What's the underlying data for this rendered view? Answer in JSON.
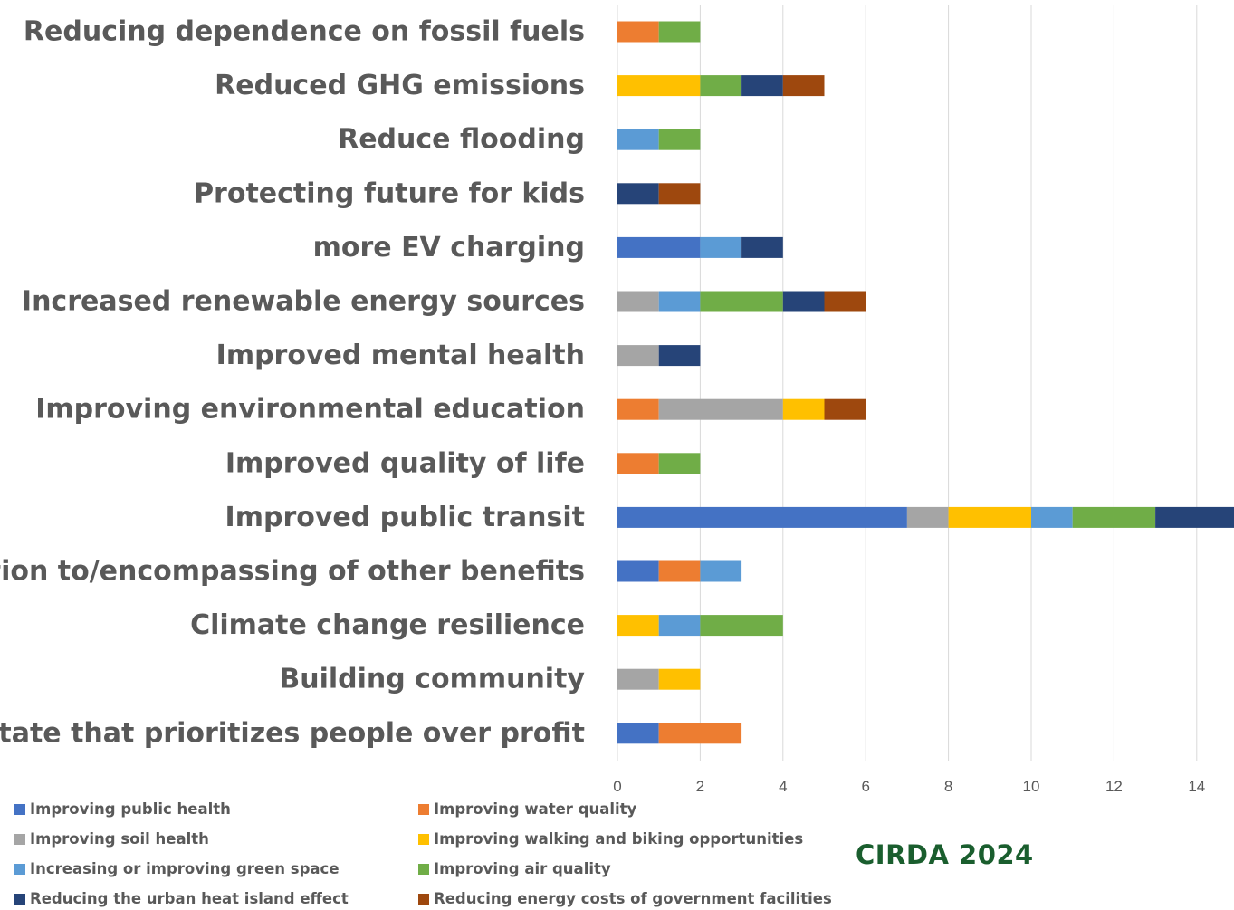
{
  "chart_data": {
    "type": "bar",
    "orientation": "horizontal",
    "stacked": true,
    "categories": [
      "Reducing dependence on fossil fuels",
      "Reduced GHG emissions",
      "Reduce flooding",
      "Protecting future for kids",
      "more EV charging",
      "Increased renewable energy sources",
      "Improved mental health",
      "Improving environmental education",
      "Improved quality of life",
      "Improved public transit",
      "Connection to/encompassing of other benefits",
      "Climate change resilience",
      "Building community",
      "A state that prioritizes people over profit"
    ],
    "series": [
      {
        "name": "Improving public health",
        "color": "#4472c4",
        "values": [
          0,
          0,
          0,
          0,
          2,
          0,
          0,
          0,
          0,
          7,
          1,
          0,
          0,
          1
        ]
      },
      {
        "name": "Improving water quality",
        "color": "#ed7d31",
        "values": [
          1,
          0,
          0,
          0,
          0,
          0,
          0,
          1,
          1,
          0,
          1,
          0,
          0,
          2
        ]
      },
      {
        "name": "Improving soil health",
        "color": "#a5a5a5",
        "values": [
          0,
          0,
          0,
          0,
          0,
          1,
          1,
          3,
          0,
          1,
          0,
          0,
          1,
          0
        ]
      },
      {
        "name": "Improving walking and biking opportunities",
        "color": "#ffc000",
        "values": [
          0,
          2,
          0,
          0,
          0,
          0,
          0,
          1,
          0,
          2,
          0,
          1,
          1,
          0
        ]
      },
      {
        "name": "Increasing or improving green space",
        "color": "#5b9bd5",
        "values": [
          0,
          0,
          1,
          0,
          1,
          1,
          0,
          0,
          0,
          1,
          1,
          1,
          0,
          0
        ]
      },
      {
        "name": "Improving air quality",
        "color": "#70ad47",
        "values": [
          1,
          1,
          1,
          0,
          0,
          2,
          0,
          0,
          1,
          2,
          0,
          2,
          0,
          0
        ]
      },
      {
        "name": "Reducing the urban heat island effect",
        "color": "#264478",
        "values": [
          0,
          1,
          0,
          1,
          1,
          1,
          1,
          0,
          0,
          2,
          0,
          0,
          0,
          0
        ]
      },
      {
        "name": "Reducing energy costs of government facilities",
        "color": "#9e480e",
        "values": [
          0,
          1,
          0,
          1,
          0,
          1,
          0,
          1,
          0,
          0,
          0,
          0,
          0,
          0
        ]
      }
    ],
    "xlim": [
      0,
      16
    ],
    "xticks": [
      0,
      2,
      4,
      6,
      8,
      10,
      12,
      14
    ],
    "xtick_labels": [
      "0",
      "2",
      "4",
      "6",
      "8",
      "10",
      "12",
      "14"
    ],
    "grid": "vertical",
    "legend_position": "bottom",
    "title": "",
    "xlabel": "",
    "ylabel": ""
  },
  "watermark": "CIRDA 2024"
}
